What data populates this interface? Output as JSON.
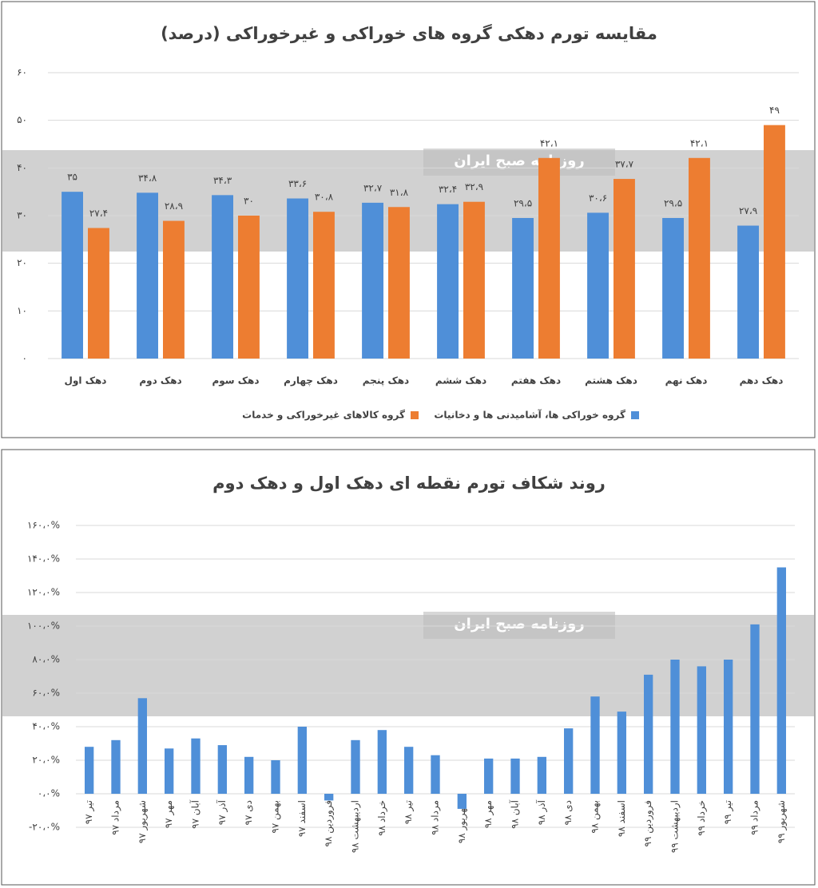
{
  "chart_data": [
    {
      "type": "bar",
      "title": "مقایسه تورم دهکی گروه های خوراکی و غیرخوراکی (درصد)",
      "watermark": "روزنامه صبح ایران",
      "categories": [
        "دهک اول",
        "دهک دوم",
        "دهک سوم",
        "دهک چهارم",
        "دهک پنجم",
        "دهک ششم",
        "دهک هفتم",
        "دهک هشتم",
        "دهک نهم",
        "دهک دهم"
      ],
      "series": [
        {
          "name": "گروه خوراکی ها، آشامیدنی ها و دخانیات",
          "color": "#4f8fd8",
          "values": [
            35,
            34.8,
            34.3,
            33.6,
            32.7,
            32.4,
            29.5,
            30.6,
            29.5,
            27.9
          ],
          "value_labels": [
            "۳۵",
            "۳۴،۸",
            "۳۴،۳",
            "۳۳،۶",
            "۳۲،۷",
            "۳۲،۴",
            "۲۹،۵",
            "۳۰،۶",
            "۲۹،۵",
            "۲۷،۹"
          ]
        },
        {
          "name": "گروه کالاهای غیرخوراکی و خدمات",
          "color": "#ed7d31",
          "values": [
            27.4,
            28.9,
            30,
            30.8,
            31.8,
            32.9,
            42.1,
            37.7,
            42.1,
            49
          ],
          "value_labels": [
            "۲۷،۴",
            "۲۸،۹",
            "۳۰",
            "۳۰،۸",
            "۳۱،۸",
            "۳۲،۹",
            "۴۲،۱",
            "۳۷،۷",
            "۴۲،۱",
            "۴۹"
          ]
        }
      ],
      "ylim": [
        0,
        60
      ],
      "yticks": [
        {
          "value": 0,
          "label": "۰"
        },
        {
          "value": 10,
          "label": "۱۰"
        },
        {
          "value": 20,
          "label": "۲۰"
        },
        {
          "value": 30,
          "label": "۳۰"
        },
        {
          "value": 40,
          "label": "۴۰"
        },
        {
          "value": 50,
          "label": "۵۰"
        },
        {
          "value": 60,
          "label": "۶۰"
        }
      ],
      "grid": true,
      "legend": "bottom"
    },
    {
      "type": "bar",
      "title": "روند شکاف تورم نقطه ای دهک اول و دهک دوم",
      "watermark": "روزنامه صبح ایران",
      "categories": [
        "تیر ۹۷",
        "مرداد ۹۷",
        "شهریور ۹۷",
        "مهر ۹۷",
        "آبان ۹۷",
        "آذر ۹۷",
        "دی ۹۷",
        "بهمن ۹۷",
        "اسفند ۹۷",
        "فروردین ۹۸",
        "اردیبهشت ۹۸",
        "خرداد ۹۸",
        "تیر ۹۸",
        "مرداد ۹۸",
        "شهریور ۹۸",
        "مهر ۹۸",
        "آبان ۹۸",
        "آذر ۹۸",
        "دی ۹۸",
        "بهمن ۹۸",
        "اسفند ۹۸",
        "فروردین ۹۹",
        "اردیبهشت ۹۹",
        "خرداد ۹۹",
        "تیر ۹۹",
        "مرداد ۹۹",
        "شهریور ۹۹"
      ],
      "values": [
        28,
        32,
        57,
        27,
        33,
        29,
        22,
        20,
        40,
        -4,
        32,
        38,
        28,
        23,
        -9,
        21,
        21,
        22,
        39,
        58,
        49,
        71,
        80,
        76,
        80,
        101,
        135
      ],
      "color": "#4f8fd8",
      "ylim": [
        -20,
        160
      ],
      "yticks": [
        {
          "value": -20,
          "label": "-۲۰،۰%"
        },
        {
          "value": 0,
          "label": "۰،۰%"
        },
        {
          "value": 20,
          "label": "۲۰،۰%"
        },
        {
          "value": 40,
          "label": "۴۰،۰%"
        },
        {
          "value": 60,
          "label": "۶۰،۰%"
        },
        {
          "value": 80,
          "label": "۸۰،۰%"
        },
        {
          "value": 100,
          "label": "۱۰۰،۰%"
        },
        {
          "value": 120,
          "label": "۱۲۰،۰%"
        },
        {
          "value": 140,
          "label": "۱۴۰،۰%"
        },
        {
          "value": 160,
          "label": "۱۶۰،۰%"
        }
      ],
      "grid": true
    }
  ]
}
